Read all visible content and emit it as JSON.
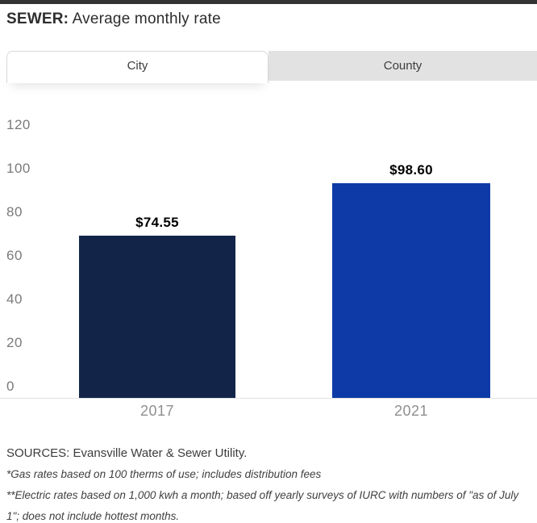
{
  "header": {
    "title_bold": "SEWER:",
    "title_rest": " Average monthly rate"
  },
  "tabs": [
    {
      "label": "City",
      "active": true
    },
    {
      "label": "County",
      "active": false
    }
  ],
  "chart_data": {
    "type": "bar",
    "title": "SEWER: Average monthly rate",
    "categories": [
      "2017",
      "2021"
    ],
    "values": [
      74.55,
      98.6
    ],
    "value_labels": [
      "$74.55",
      "$98.60"
    ],
    "bar_colors": [
      "#122548",
      "#0d3aa6"
    ],
    "yticks": [
      0,
      20,
      40,
      60,
      80,
      100,
      120
    ],
    "ylim": [
      0,
      120
    ],
    "xlabel": "",
    "ylabel": "",
    "grid": false,
    "legend": "none"
  },
  "footer": {
    "sources": "SOURCES: Evansville Water & Sewer Utility.",
    "note1": "*Gas rates based on 100 therms of use; includes distribution fees",
    "note2": "**Electric rates based on 1,000 kwh a month; based off yearly surveys of IURC with numbers of \"as of July 1\"; does not include hottest months."
  },
  "colors": {
    "top_bar": "#333333",
    "tab_inactive_bg": "#e2e2e2",
    "axis_line": "#e3e3e3",
    "tick_text": "#7a7a7a",
    "category_text": "#8f8f8f"
  }
}
